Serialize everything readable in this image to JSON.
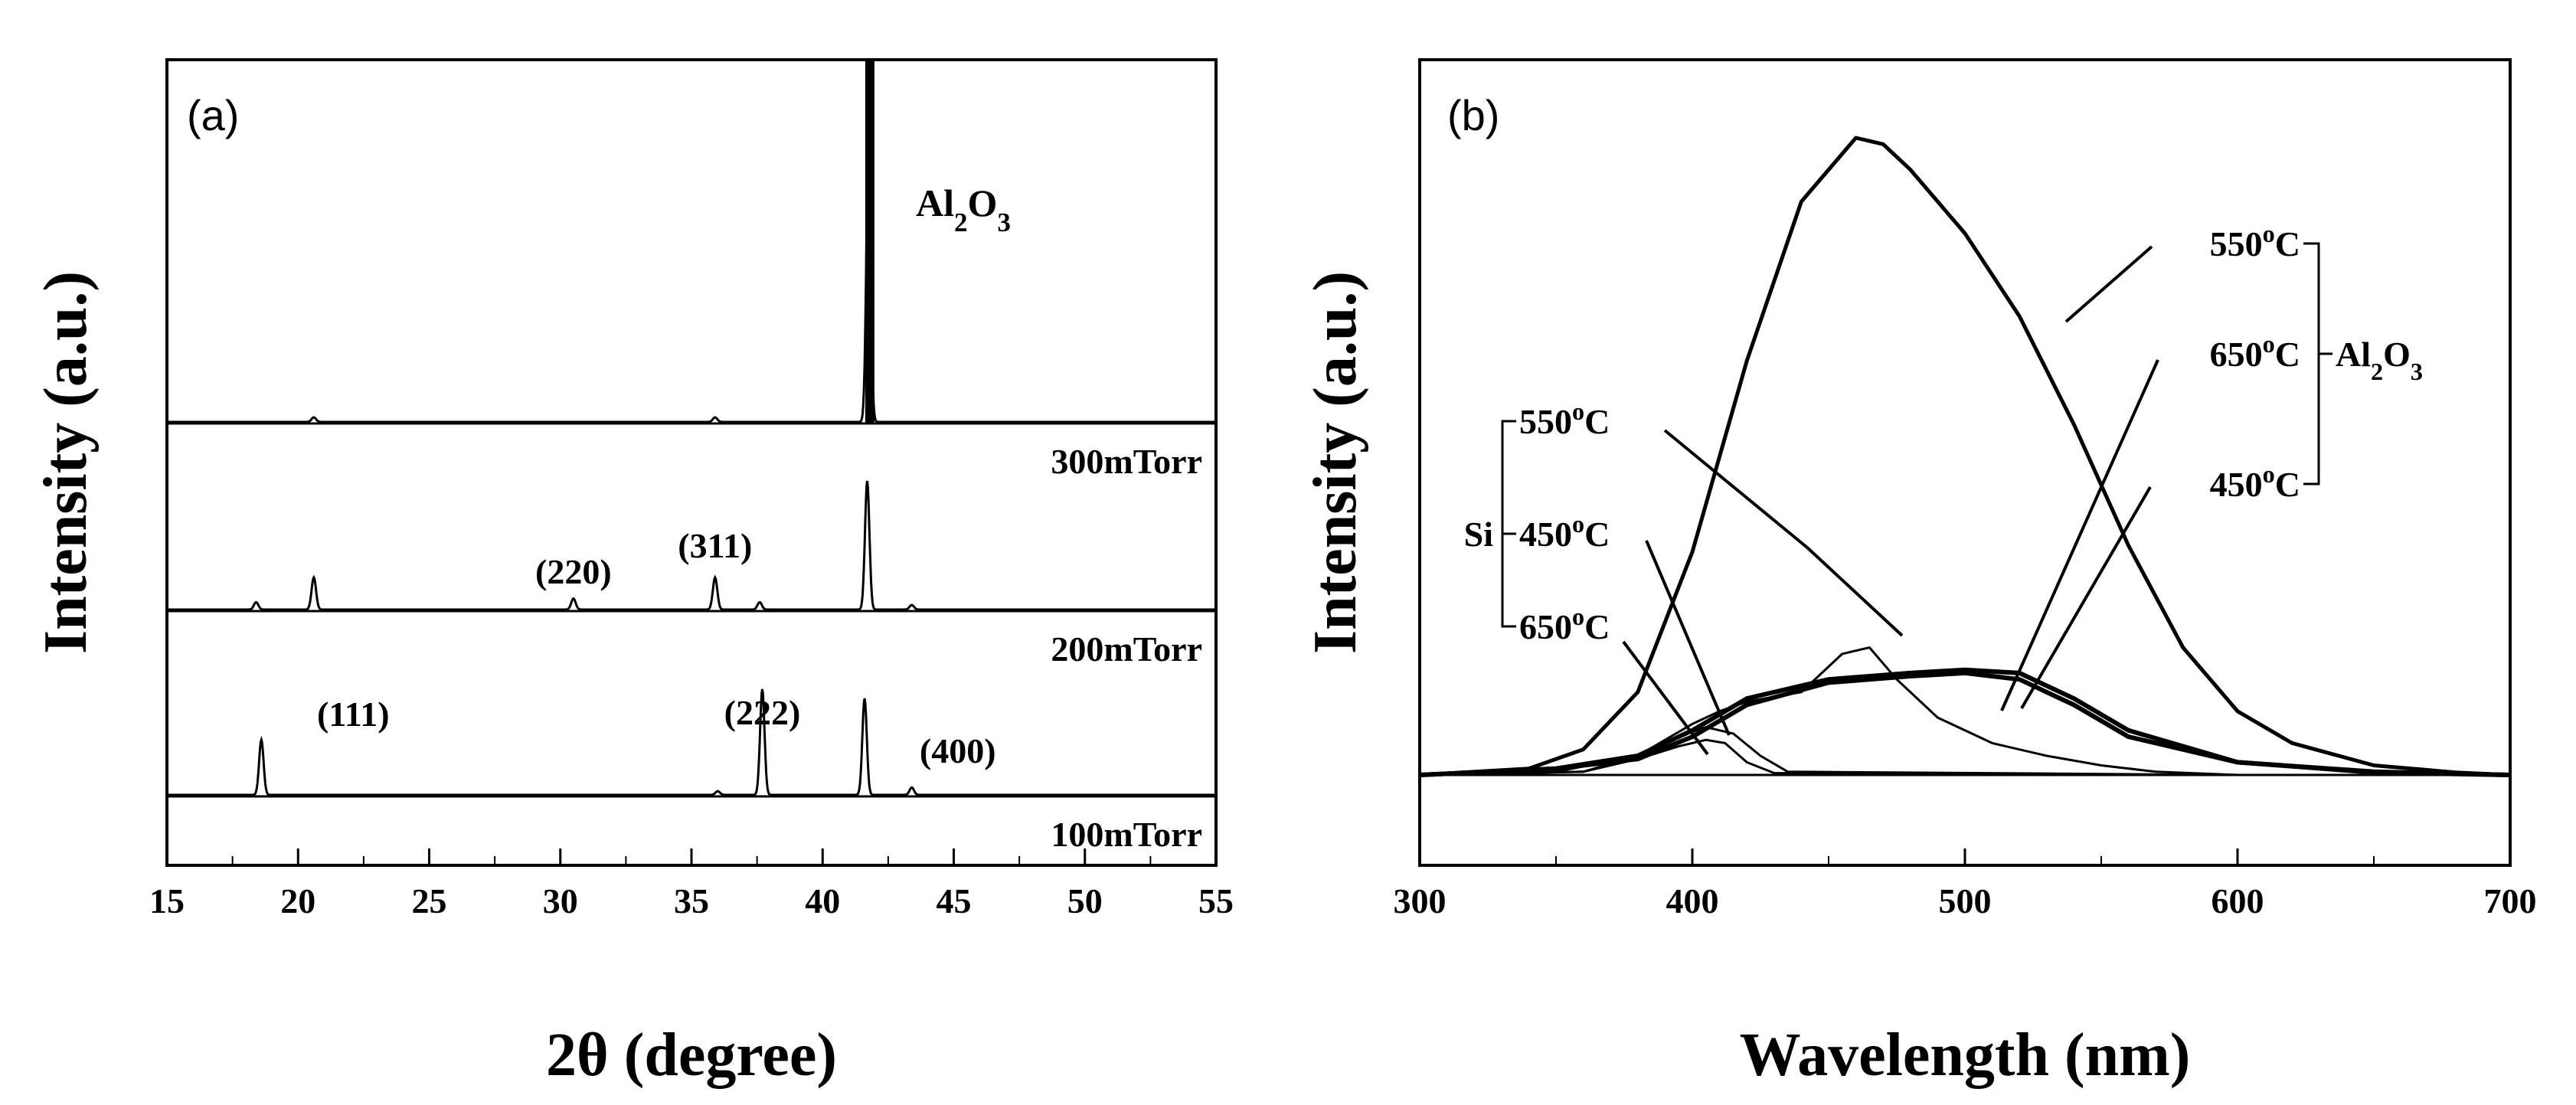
{
  "chart_data": [
    {
      "type": "line",
      "panel": "(a)",
      "xlabel": "2θ (degree)",
      "ylabel": "Intensity (a.u.)",
      "xlim": [
        15,
        55
      ],
      "xticks": [
        15,
        20,
        25,
        30,
        35,
        40,
        45,
        50,
        55
      ],
      "series": [
        {
          "name": "100mTorr",
          "baseline": 0.0,
          "peaks": [
            {
              "x": 18.6,
              "h": 0.6
            },
            {
              "x": 36.0,
              "h": 0.04
            },
            {
              "x": 37.7,
              "h": 1.15
            },
            {
              "x": 41.6,
              "h": 1.05
            },
            {
              "x": 43.4,
              "h": 0.08
            }
          ]
        },
        {
          "name": "200mTorr",
          "baseline": 2.0,
          "peaks": [
            {
              "x": 18.4,
              "h": 0.08
            },
            {
              "x": 20.6,
              "h": 0.35
            },
            {
              "x": 30.5,
              "h": 0.12
            },
            {
              "x": 35.9,
              "h": 0.35
            },
            {
              "x": 37.6,
              "h": 0.08
            },
            {
              "x": 41.7,
              "h": 1.4
            },
            {
              "x": 43.4,
              "h": 0.05
            }
          ]
        },
        {
          "name": "300mTorr",
          "baseline": 4.0,
          "peaks": [
            {
              "x": 20.6,
              "h": 0.05
            },
            {
              "x": 35.9,
              "h": 0.05
            },
            {
              "x": 41.75,
              "h": 3.0
            }
          ]
        }
      ],
      "substrate_line": {
        "label_html": "Al2O3",
        "x": 41.8
      },
      "annotations": [
        {
          "text": "(111)",
          "x": 18.6
        },
        {
          "text": "(220)",
          "x": 30.5
        },
        {
          "text": "(311)",
          "x": 35.9
        },
        {
          "text": "(222)",
          "x": 37.7
        },
        {
          "text": "(400)",
          "x": 43.4
        }
      ]
    },
    {
      "type": "line",
      "panel": "(b)",
      "xlabel": "Wavelength (nm)",
      "ylabel": "Intensity (a.u.)",
      "xlim": [
        300,
        700
      ],
      "xticks": [
        300,
        400,
        500,
        600,
        700
      ],
      "series": [
        {
          "name": "Al2O3 550°C",
          "group": "Al2O3",
          "temp": "550°C",
          "x": [
            300,
            340,
            360,
            380,
            400,
            420,
            440,
            460,
            470,
            480,
            500,
            520,
            540,
            560,
            580,
            600,
            620,
            650,
            680,
            700
          ],
          "y": [
            0,
            0.01,
            0.04,
            0.13,
            0.35,
            0.65,
            0.9,
            1.0,
            0.99,
            0.95,
            0.85,
            0.72,
            0.55,
            0.36,
            0.2,
            0.1,
            0.05,
            0.015,
            0.004,
            0
          ]
        },
        {
          "name": "Al2O3 650°C",
          "group": "Al2O3",
          "temp": "650°C",
          "x": [
            300,
            350,
            380,
            400,
            420,
            450,
            480,
            500,
            520,
            540,
            560,
            600,
            650,
            700
          ],
          "y": [
            0,
            0.01,
            0.03,
            0.07,
            0.12,
            0.15,
            0.16,
            0.165,
            0.16,
            0.12,
            0.07,
            0.02,
            0.005,
            0
          ]
        },
        {
          "name": "Al2O3 450°C",
          "group": "Al2O3",
          "temp": "450°C",
          "x": [
            300,
            350,
            380,
            400,
            420,
            450,
            480,
            500,
            520,
            540,
            560,
            600,
            650,
            700
          ],
          "y": [
            0,
            0.01,
            0.025,
            0.06,
            0.11,
            0.145,
            0.155,
            0.16,
            0.15,
            0.11,
            0.06,
            0.02,
            0.004,
            0
          ]
        },
        {
          "name": "Si 550°C",
          "group": "Si",
          "temp": "550°C",
          "x": [
            300,
            350,
            380,
            400,
            410,
            420,
            440,
            455,
            465,
            475,
            490,
            510,
            530,
            550,
            570,
            600,
            700
          ],
          "y": [
            0,
            0.005,
            0.03,
            0.08,
            0.1,
            0.115,
            0.13,
            0.19,
            0.2,
            0.15,
            0.09,
            0.05,
            0.03,
            0.015,
            0.005,
            0,
            0
          ]
        },
        {
          "name": "Si 450°C",
          "group": "Si",
          "temp": "450°C",
          "x": [
            300,
            360,
            380,
            395,
            405,
            415,
            425,
            435,
            600,
            700
          ],
          "y": [
            0,
            0.005,
            0.03,
            0.06,
            0.075,
            0.065,
            0.03,
            0.005,
            0,
            0
          ]
        },
        {
          "name": "Si 650°C",
          "group": "Si",
          "temp": "650°C",
          "x": [
            300,
            360,
            380,
            395,
            405,
            412,
            420,
            430,
            600,
            700
          ],
          "y": [
            0,
            0.005,
            0.025,
            0.045,
            0.055,
            0.05,
            0.02,
            0.003,
            0,
            0
          ]
        }
      ],
      "legend_groups": [
        {
          "label": "Si",
          "temps": [
            "550°C",
            "450°C",
            "650°C"
          ]
        },
        {
          "label": "Al2O3",
          "temps": [
            "550°C",
            "650°C",
            "450°C"
          ]
        }
      ]
    }
  ]
}
